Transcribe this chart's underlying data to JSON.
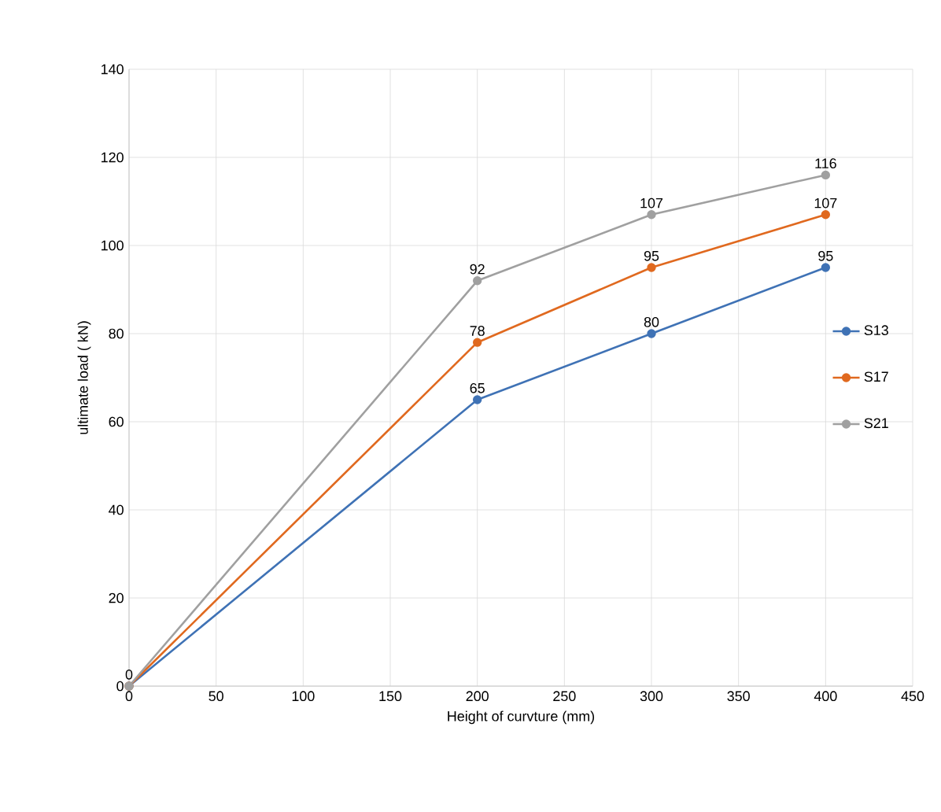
{
  "chart_data": {
    "type": "line",
    "xlabel": "Height of curvture (mm)",
    "ylabel": "ultimate load ( kN)",
    "x": [
      0,
      200,
      300,
      400
    ],
    "series": [
      {
        "name": "S13",
        "color": "#3f72b5",
        "values": [
          0,
          65,
          80,
          95
        ],
        "value_labels": [
          null,
          "65",
          "80",
          "95"
        ]
      },
      {
        "name": "S17",
        "color": "#e0691f",
        "values": [
          0,
          78,
          95,
          107
        ],
        "value_labels": [
          null,
          "78",
          "95",
          "107"
        ]
      },
      {
        "name": "S21",
        "color": "#a0a0a0",
        "values": [
          0,
          92,
          107,
          116
        ],
        "value_labels": [
          "0",
          "92",
          "107",
          "116"
        ]
      }
    ],
    "xlim": [
      0,
      450
    ],
    "ylim": [
      0,
      140
    ],
    "xticks": [
      0,
      50,
      100,
      150,
      200,
      250,
      300,
      350,
      400,
      450
    ],
    "yticks": [
      0,
      20,
      40,
      60,
      80,
      100,
      120,
      140
    ],
    "grid": true,
    "legend": "right",
    "marker": "circle",
    "line_style": "solid"
  }
}
